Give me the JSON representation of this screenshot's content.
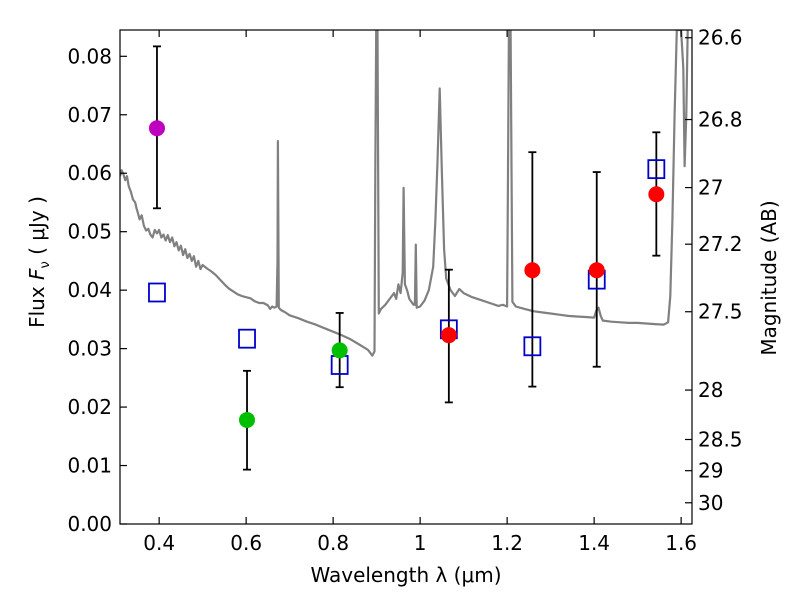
{
  "chart_data": {
    "type": "scatter",
    "xlabel": "Wavelength  λ (μm)",
    "ylabel": "Flux  F_ν  ( μJy )",
    "ylabel_parts": {
      "pre": "Flux  ",
      "symbol": "F",
      "sub": "ν",
      "post": "  ( μJy )"
    },
    "ylabel_right": "Magnitude (AB)",
    "xlim": [
      0.31,
      1.625
    ],
    "ylim": [
      0.0,
      0.0845
    ],
    "x_ticks": [
      {
        "value": 0.4,
        "label": "0.4"
      },
      {
        "value": 0.6,
        "label": "0.6"
      },
      {
        "value": 0.8,
        "label": "0.8"
      },
      {
        "value": 1.0,
        "label": "1"
      },
      {
        "value": 1.2,
        "label": "1.2"
      },
      {
        "value": 1.4,
        "label": "1.4"
      },
      {
        "value": 1.6,
        "label": "1.6"
      }
    ],
    "y_ticks": [
      {
        "value": 0.0,
        "label": "0.00"
      },
      {
        "value": 0.01,
        "label": "0.01"
      },
      {
        "value": 0.02,
        "label": "0.02"
      },
      {
        "value": 0.03,
        "label": "0.03"
      },
      {
        "value": 0.04,
        "label": "0.04"
      },
      {
        "value": 0.05,
        "label": "0.05"
      },
      {
        "value": 0.06,
        "label": "0.06"
      },
      {
        "value": 0.07,
        "label": "0.07"
      },
      {
        "value": 0.08,
        "label": "0.08"
      }
    ],
    "mag_ticks": [
      {
        "mag": 26.6,
        "label": "26.6"
      },
      {
        "mag": 26.8,
        "label": "26.8"
      },
      {
        "mag": 27.0,
        "label": "27"
      },
      {
        "mag": 27.2,
        "label": "27.2"
      },
      {
        "mag": 27.5,
        "label": "27.5"
      },
      {
        "mag": 28.0,
        "label": "28"
      },
      {
        "mag": 28.5,
        "label": "28.5"
      },
      {
        "mag": 29.0,
        "label": "29"
      },
      {
        "mag": 30.0,
        "label": "30"
      }
    ],
    "observed": [
      {
        "x": 0.395,
        "y": 0.0677,
        "err_low": 0.054,
        "err_high": 0.0817,
        "color": "#bf00bf"
      },
      {
        "x": 0.602,
        "y": 0.0178,
        "err_low": 0.0093,
        "err_high": 0.0262,
        "color": "#00bf00"
      },
      {
        "x": 0.815,
        "y": 0.0297,
        "err_low": 0.0234,
        "err_high": 0.0361,
        "color": "#00bf00"
      },
      {
        "x": 1.066,
        "y": 0.0323,
        "err_low": 0.0208,
        "err_high": 0.0435,
        "color": "#ff0000"
      },
      {
        "x": 1.258,
        "y": 0.0434,
        "err_low": 0.0235,
        "err_high": 0.0636,
        "color": "#ff0000"
      },
      {
        "x": 1.406,
        "y": 0.0434,
        "err_low": 0.0269,
        "err_high": 0.0602,
        "color": "#ff0000"
      },
      {
        "x": 1.543,
        "y": 0.0564,
        "err_low": 0.0459,
        "err_high": 0.067,
        "color": "#ff0000"
      }
    ],
    "model_photometry": [
      {
        "x": 0.395,
        "y": 0.0396
      },
      {
        "x": 0.602,
        "y": 0.0317
      },
      {
        "x": 0.815,
        "y": 0.0272
      },
      {
        "x": 1.066,
        "y": 0.0333
      },
      {
        "x": 1.258,
        "y": 0.0304
      },
      {
        "x": 1.406,
        "y": 0.0418
      },
      {
        "x": 1.543,
        "y": 0.0607
      }
    ],
    "sed_model": [
      [
        0.31,
        0.0595
      ],
      [
        0.314,
        0.0605
      ],
      [
        0.318,
        0.0598
      ],
      [
        0.322,
        0.0588
      ],
      [
        0.326,
        0.0595
      ],
      [
        0.33,
        0.0578
      ],
      [
        0.335,
        0.0568
      ],
      [
        0.34,
        0.0555
      ],
      [
        0.345,
        0.055
      ],
      [
        0.348,
        0.054
      ],
      [
        0.35,
        0.0535
      ],
      [
        0.355,
        0.0521
      ],
      [
        0.36,
        0.0528
      ],
      [
        0.365,
        0.051
      ],
      [
        0.37,
        0.0502
      ],
      [
        0.375,
        0.0505
      ],
      [
        0.38,
        0.0495
      ],
      [
        0.385,
        0.049
      ],
      [
        0.39,
        0.0503
      ],
      [
        0.395,
        0.0497
      ],
      [
        0.4,
        0.0503
      ],
      [
        0.405,
        0.049
      ],
      [
        0.41,
        0.0495
      ],
      [
        0.415,
        0.0485
      ],
      [
        0.42,
        0.0494
      ],
      [
        0.425,
        0.0482
      ],
      [
        0.43,
        0.049
      ],
      [
        0.435,
        0.0475
      ],
      [
        0.44,
        0.0482
      ],
      [
        0.445,
        0.0468
      ],
      [
        0.45,
        0.0476
      ],
      [
        0.455,
        0.046
      ],
      [
        0.46,
        0.047
      ],
      [
        0.465,
        0.0455
      ],
      [
        0.47,
        0.0462
      ],
      [
        0.475,
        0.045
      ],
      [
        0.48,
        0.0458
      ],
      [
        0.485,
        0.044
      ],
      [
        0.49,
        0.045
      ],
      [
        0.495,
        0.0436
      ],
      [
        0.5,
        0.0443
      ],
      [
        0.51,
        0.0437
      ],
      [
        0.52,
        0.0432
      ],
      [
        0.53,
        0.0426
      ],
      [
        0.54,
        0.0418
      ],
      [
        0.55,
        0.041
      ],
      [
        0.56,
        0.0403
      ],
      [
        0.57,
        0.0398
      ],
      [
        0.58,
        0.0393
      ],
      [
        0.59,
        0.039
      ],
      [
        0.6,
        0.0388
      ],
      [
        0.61,
        0.0386
      ],
      [
        0.62,
        0.0381
      ],
      [
        0.63,
        0.0378
      ],
      [
        0.64,
        0.0378
      ],
      [
        0.65,
        0.0374
      ],
      [
        0.655,
        0.0368
      ],
      [
        0.66,
        0.0372
      ],
      [
        0.665,
        0.037
      ],
      [
        0.67,
        0.0372
      ],
      [
        0.672,
        0.045
      ],
      [
        0.673,
        0.0655
      ],
      [
        0.675,
        0.037
      ],
      [
        0.68,
        0.0366
      ],
      [
        0.69,
        0.0362
      ],
      [
        0.7,
        0.0357
      ],
      [
        0.72,
        0.0352
      ],
      [
        0.74,
        0.0346
      ],
      [
        0.76,
        0.0341
      ],
      [
        0.78,
        0.0335
      ],
      [
        0.8,
        0.0329
      ],
      [
        0.82,
        0.0323
      ],
      [
        0.84,
        0.0316
      ],
      [
        0.86,
        0.0307
      ],
      [
        0.88,
        0.0298
      ],
      [
        0.89,
        0.0288
      ],
      [
        0.895,
        0.0295
      ],
      [
        0.897,
        0.06
      ],
      [
        0.899,
        0.0845
      ],
      [
        0.902,
        0.0845
      ],
      [
        0.905,
        0.036
      ],
      [
        0.91,
        0.0368
      ],
      [
        0.92,
        0.0375
      ],
      [
        0.93,
        0.0385
      ],
      [
        0.94,
        0.0395
      ],
      [
        0.945,
        0.0385
      ],
      [
        0.95,
        0.041
      ],
      [
        0.955,
        0.0395
      ],
      [
        0.96,
        0.043
      ],
      [
        0.962,
        0.0575
      ],
      [
        0.965,
        0.041
      ],
      [
        0.97,
        0.04
      ],
      [
        0.975,
        0.0385
      ],
      [
        0.98,
        0.038
      ],
      [
        0.985,
        0.0375
      ],
      [
        0.988,
        0.0375
      ],
      [
        0.99,
        0.0478
      ],
      [
        0.992,
        0.037
      ],
      [
        1.0,
        0.0372
      ],
      [
        1.01,
        0.0382
      ],
      [
        1.02,
        0.04
      ],
      [
        1.03,
        0.044
      ],
      [
        1.035,
        0.052
      ],
      [
        1.04,
        0.062
      ],
      [
        1.045,
        0.0745
      ],
      [
        1.05,
        0.06
      ],
      [
        1.055,
        0.047
      ],
      [
        1.06,
        0.042
      ],
      [
        1.07,
        0.04
      ],
      [
        1.08,
        0.039
      ],
      [
        1.09,
        0.0402
      ],
      [
        1.1,
        0.0395
      ],
      [
        1.12,
        0.0388
      ],
      [
        1.14,
        0.0383
      ],
      [
        1.16,
        0.0378
      ],
      [
        1.18,
        0.0373
      ],
      [
        1.19,
        0.0375
      ],
      [
        1.2,
        0.0372
      ],
      [
        1.202,
        0.06
      ],
      [
        1.204,
        0.0845
      ],
      [
        1.208,
        0.0845
      ],
      [
        1.212,
        0.038
      ],
      [
        1.22,
        0.0372
      ],
      [
        1.24,
        0.0368
      ],
      [
        1.26,
        0.0364
      ],
      [
        1.28,
        0.0362
      ],
      [
        1.3,
        0.036
      ],
      [
        1.32,
        0.0358
      ],
      [
        1.34,
        0.0356
      ],
      [
        1.36,
        0.0355
      ],
      [
        1.38,
        0.0354
      ],
      [
        1.4,
        0.0353
      ],
      [
        1.405,
        0.0365
      ],
      [
        1.41,
        0.037
      ],
      [
        1.415,
        0.0356
      ],
      [
        1.42,
        0.0348
      ],
      [
        1.44,
        0.0346
      ],
      [
        1.46,
        0.0345
      ],
      [
        1.48,
        0.0344
      ],
      [
        1.5,
        0.0344
      ],
      [
        1.52,
        0.0343
      ],
      [
        1.54,
        0.0342
      ],
      [
        1.56,
        0.0341
      ],
      [
        1.57,
        0.0345
      ],
      [
        1.575,
        0.039
      ],
      [
        1.58,
        0.052
      ],
      [
        1.585,
        0.07
      ],
      [
        1.59,
        0.0845
      ],
      [
        1.6,
        0.0845
      ],
      [
        1.605,
        0.078
      ],
      [
        1.608,
        0.0612
      ],
      [
        1.612,
        0.07
      ],
      [
        1.615,
        0.0845
      ]
    ]
  },
  "colors": {
    "model_line": "#808080",
    "model_marker": "#0000cc",
    "errorbar": "#000000"
  }
}
